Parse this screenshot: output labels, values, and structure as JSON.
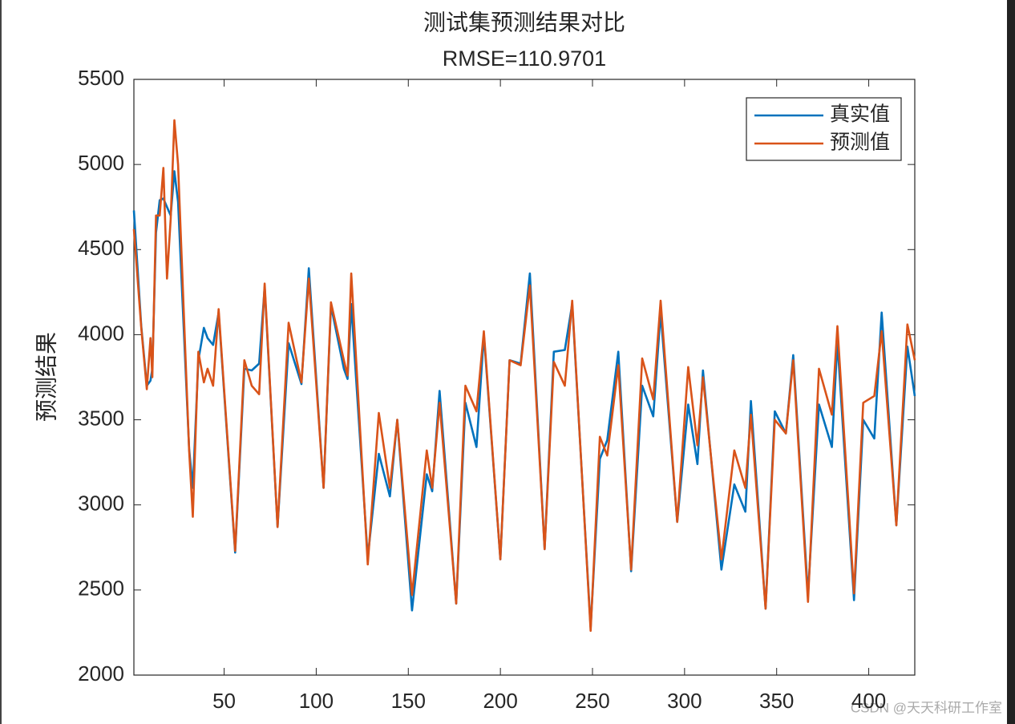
{
  "chart_data": {
    "type": "line",
    "title": "测试集预测结果对比",
    "subtitle": "RMSE=110.9701",
    "ylabel": "预测结果",
    "watermark": "CSDN @天天科研工作室",
    "legend": "northeast",
    "grid": false,
    "xlim": [
      1,
      425
    ],
    "ylim": [
      2000,
      5500
    ],
    "xticks": [
      50,
      100,
      150,
      200,
      250,
      300,
      350,
      400
    ],
    "yticks": [
      2000,
      2500,
      3000,
      3500,
      4000,
      4500,
      5000,
      5500
    ],
    "x": [
      1,
      5,
      8,
      10,
      11,
      13,
      15,
      17,
      19,
      21,
      23,
      25,
      31,
      33,
      36,
      39,
      41,
      44,
      47,
      56,
      61,
      65,
      69,
      72,
      79,
      85,
      92,
      96,
      104,
      108,
      115,
      117,
      119,
      128,
      134,
      140,
      144,
      152,
      160,
      163,
      167,
      176,
      181,
      187,
      191,
      200,
      205,
      211,
      216,
      224,
      229,
      235,
      239,
      249,
      254,
      258,
      264,
      271,
      277,
      283,
      287,
      296,
      302,
      307,
      310,
      320,
      327,
      333,
      336,
      344,
      349,
      355,
      359,
      367,
      373,
      380,
      383,
      392,
      397,
      403,
      407,
      415,
      421,
      425
    ],
    "series": [
      {
        "name": "真实值",
        "color": "#0072BD",
        "values": [
          4730,
          4050,
          3700,
          3730,
          3800,
          4600,
          4790,
          4800,
          4750,
          4700,
          4960,
          4780,
          3330,
          3100,
          3850,
          4040,
          3980,
          3940,
          4130,
          2720,
          3800,
          3790,
          3830,
          4280,
          2870,
          3950,
          3710,
          4390,
          3100,
          4170,
          3800,
          3740,
          4180,
          2690,
          3300,
          3050,
          3500,
          2380,
          3180,
          3080,
          3670,
          2420,
          3600,
          3340,
          4000,
          2680,
          3850,
          3830,
          4360,
          2740,
          3900,
          3910,
          4180,
          2280,
          3270,
          3380,
          3900,
          2610,
          3700,
          3520,
          4130,
          2900,
          3590,
          3240,
          3790,
          2620,
          3120,
          2960,
          3610,
          2390,
          3550,
          3420,
          3880,
          2470,
          3590,
          3340,
          3960,
          2440,
          3500,
          3390,
          4130,
          2880,
          3930,
          3640
        ]
      },
      {
        "name": "预测值",
        "color": "#D95319",
        "values": [
          4620,
          4040,
          3680,
          3980,
          3750,
          4700,
          4700,
          4980,
          4330,
          4680,
          5260,
          5000,
          3320,
          2930,
          3900,
          3720,
          3800,
          3700,
          4150,
          2730,
          3850,
          3700,
          3650,
          4300,
          2870,
          4070,
          3720,
          4330,
          3100,
          4190,
          3850,
          3760,
          4360,
          2650,
          3540,
          3100,
          3500,
          2470,
          3320,
          3100,
          3600,
          2420,
          3700,
          3550,
          4020,
          2680,
          3850,
          3820,
          4290,
          2740,
          3840,
          3700,
          4200,
          2260,
          3400,
          3290,
          3820,
          2620,
          3860,
          3620,
          4200,
          2900,
          3810,
          3350,
          3750,
          2680,
          3320,
          3100,
          3530,
          2390,
          3500,
          3420,
          3850,
          2430,
          3800,
          3530,
          4050,
          2480,
          3600,
          3640,
          4020,
          2880,
          4060,
          3850
        ]
      }
    ]
  }
}
